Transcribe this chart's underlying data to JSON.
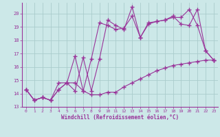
{
  "xlabel": "Windchill (Refroidissement éolien,°C)",
  "bg_color": "#cce8e8",
  "grid_color": "#aacccc",
  "line_color": "#993399",
  "xlim": [
    -0.5,
    23.5
  ],
  "ylim": [
    13,
    20.8
  ],
  "xticks": [
    0,
    1,
    2,
    3,
    4,
    5,
    6,
    7,
    8,
    9,
    10,
    11,
    12,
    13,
    14,
    15,
    16,
    17,
    18,
    19,
    20,
    21,
    22,
    23
  ],
  "yticks": [
    13,
    14,
    15,
    16,
    17,
    18,
    19,
    20
  ],
  "series1_x": [
    0,
    1,
    2,
    3,
    4,
    5,
    6,
    7,
    8,
    9,
    10,
    11,
    12,
    13,
    14,
    15,
    16,
    17,
    18,
    19,
    20,
    21,
    22,
    23
  ],
  "series1_y": [
    14.3,
    13.5,
    13.7,
    13.5,
    14.3,
    14.8,
    14.8,
    14.2,
    13.9,
    13.9,
    14.1,
    14.1,
    14.5,
    14.8,
    15.1,
    15.4,
    15.7,
    15.9,
    16.1,
    16.2,
    16.3,
    16.4,
    16.5,
    16.5
  ],
  "series2_x": [
    0,
    1,
    2,
    3,
    4,
    5,
    6,
    7,
    8,
    9,
    10,
    11,
    12,
    13,
    14,
    15,
    16,
    17,
    18,
    19,
    20,
    21,
    22,
    23
  ],
  "series2_y": [
    14.3,
    13.5,
    13.7,
    13.5,
    14.3,
    14.8,
    16.8,
    14.2,
    16.6,
    19.3,
    19.1,
    18.8,
    18.9,
    19.8,
    18.2,
    19.2,
    19.4,
    19.5,
    19.8,
    19.2,
    19.1,
    20.3,
    17.2,
    16.5
  ],
  "series3_x": [
    0,
    1,
    2,
    3,
    4,
    5,
    6,
    7,
    8,
    9,
    10,
    11,
    12,
    13,
    14,
    15,
    16,
    17,
    18,
    19,
    20,
    21,
    22,
    23
  ],
  "series3_y": [
    14.3,
    13.5,
    13.7,
    13.5,
    14.8,
    14.8,
    14.2,
    16.7,
    14.2,
    16.6,
    19.5,
    19.1,
    18.8,
    20.5,
    18.2,
    19.3,
    19.4,
    19.5,
    19.7,
    19.7,
    20.3,
    19.1,
    17.2,
    16.5
  ]
}
